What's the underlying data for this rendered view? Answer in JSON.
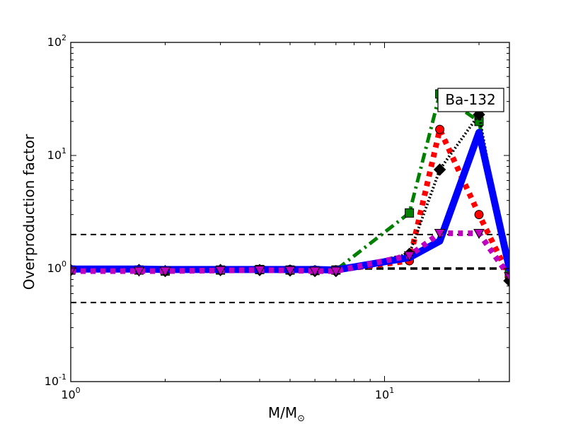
{
  "chart_data": {
    "type": "line",
    "title": "",
    "xlabel": "M/M",
    "xlabel_sub": "⊙",
    "ylabel": "Overproduction factor",
    "xscale": "log",
    "yscale": "log",
    "xlim": [
      1,
      25
    ],
    "ylim": [
      0.1,
      100
    ],
    "xtick_labels": [
      {
        "value": 1,
        "base": "10",
        "exp": "0"
      },
      {
        "value": 10,
        "base": "10",
        "exp": "1"
      }
    ],
    "ytick_labels": [
      {
        "value": 0.1,
        "base": "10",
        "exp": "-1"
      },
      {
        "value": 1,
        "base": "10",
        "exp": "0"
      },
      {
        "value": 10,
        "base": "10",
        "exp": "1"
      },
      {
        "value": 100,
        "base": "10",
        "exp": "2"
      }
    ],
    "annotation": "Ba-132",
    "reference_lines": [
      {
        "y": 2.0,
        "color": "#000000",
        "style": "dashed"
      },
      {
        "y": 1.0,
        "color": "#000000",
        "style": "dashed-bold"
      },
      {
        "y": 0.5,
        "color": "#000000",
        "style": "dashed"
      }
    ],
    "series": [
      {
        "color": "#008000",
        "style": "dashdot",
        "marker": "square",
        "x": [
          1,
          1.65,
          2,
          3,
          4,
          5,
          6,
          7,
          12,
          15,
          20,
          25
        ],
        "y": [
          0.97,
          0.97,
          0.95,
          0.97,
          0.98,
          0.97,
          0.96,
          0.97,
          3.1,
          35,
          20,
          0.9
        ]
      },
      {
        "color": "#ff0000",
        "style": "dotted",
        "marker": "circle",
        "x": [
          1,
          1.65,
          2,
          3,
          4,
          5,
          6,
          7,
          12,
          15,
          20,
          25
        ],
        "y": [
          0.98,
          0.98,
          0.96,
          0.97,
          0.98,
          0.98,
          0.97,
          0.97,
          1.17,
          17,
          3.0,
          0.85
        ]
      },
      {
        "color": "#000000",
        "style": "dotted-fine",
        "marker": "diamond",
        "x": [
          1,
          1.65,
          2,
          3,
          4,
          5,
          6,
          7,
          12,
          15,
          20,
          25
        ],
        "y": [
          0.97,
          0.97,
          0.95,
          0.97,
          0.97,
          0.96,
          0.95,
          0.95,
          1.35,
          7.5,
          23,
          0.78
        ]
      },
      {
        "color": "#0000ff",
        "style": "solid",
        "marker": "none",
        "x": [
          1,
          1.65,
          2,
          3,
          4,
          5,
          6,
          7,
          12,
          15,
          20,
          25
        ],
        "y": [
          0.99,
          0.99,
          0.98,
          0.98,
          0.98,
          0.98,
          0.98,
          0.97,
          1.25,
          1.75,
          16,
          1.0
        ]
      },
      {
        "color": "#bf00bf",
        "style": "dotted",
        "marker": "triangle-down",
        "x": [
          1,
          1.65,
          2,
          3,
          4,
          5,
          6,
          7,
          12,
          15,
          20,
          25
        ],
        "y": [
          0.95,
          0.95,
          0.95,
          0.96,
          0.97,
          0.96,
          0.95,
          0.95,
          1.3,
          2.05,
          2.05,
          0.85
        ]
      }
    ]
  }
}
